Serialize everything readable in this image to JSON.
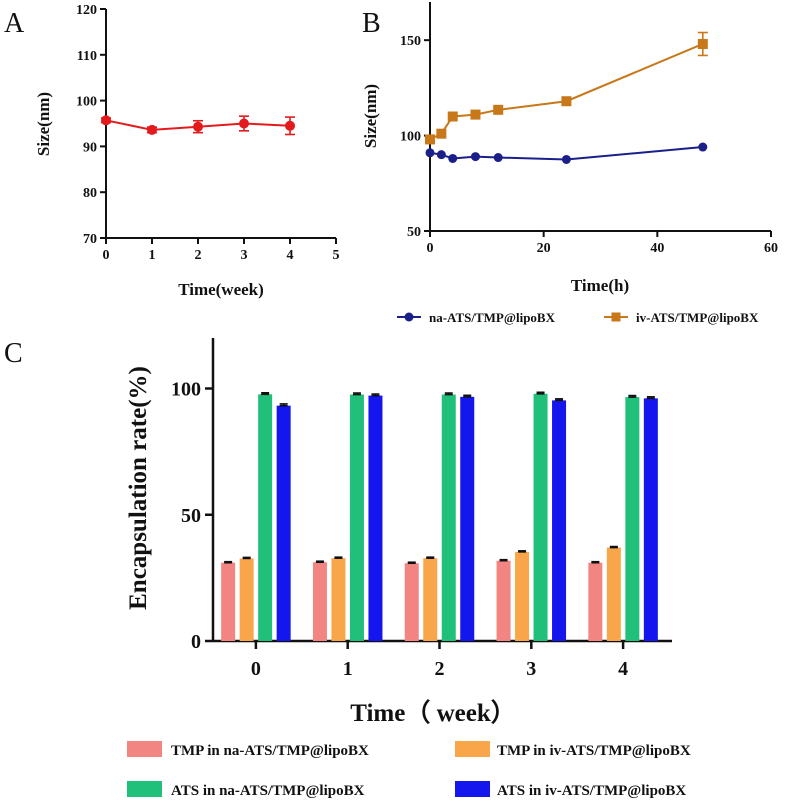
{
  "chart_data": [
    {
      "panel": "A",
      "type": "line",
      "xlabel": "Time(week)",
      "ylabel": "Size(nm)",
      "xlim": [
        0,
        5
      ],
      "ylim": [
        70,
        120
      ],
      "xticks": [
        "0",
        "1",
        "2",
        "3",
        "4",
        "5"
      ],
      "yticks": [
        "70",
        "80",
        "90",
        "100",
        "110",
        "120"
      ],
      "color": "#e31a1c",
      "x": [
        0,
        1,
        2,
        3,
        4
      ],
      "values": [
        95.7,
        93.6,
        94.3,
        95.0,
        94.5
      ],
      "errors": [
        0.5,
        0.6,
        1.3,
        1.6,
        1.9
      ]
    },
    {
      "panel": "B",
      "type": "line",
      "xlabel": "Time(h)",
      "ylabel": "Size(nm)",
      "xlim": [
        0,
        60
      ],
      "ylim": [
        50,
        170
      ],
      "xticks": [
        "0",
        "20",
        "40",
        "60"
      ],
      "yticks": [
        "50",
        "100",
        "150"
      ],
      "legend_position": "bottom",
      "series": [
        {
          "name": "na-ATS/TMP@lipoBX",
          "color": "#1b1f8a",
          "marker": "circle",
          "x": [
            0,
            2,
            4,
            8,
            12,
            24,
            48
          ],
          "values": [
            91,
            90,
            88,
            89,
            88.5,
            87.5,
            94
          ],
          "errors": [
            0,
            0,
            0,
            0,
            0,
            0,
            0
          ]
        },
        {
          "name": "iv-ATS/TMP@lipoBX",
          "color": "#c87719",
          "marker": "square",
          "x": [
            0,
            2,
            4,
            8,
            12,
            24,
            48
          ],
          "values": [
            98,
            101,
            110,
            111,
            113.5,
            118,
            148
          ],
          "errors": [
            0,
            0,
            0,
            0,
            0,
            0,
            6
          ]
        }
      ]
    },
    {
      "panel": "C",
      "type": "bar",
      "xlabel": "Time（ week）",
      "ylabel": "Encapsulation rate(%)",
      "ylim": [
        0,
        120
      ],
      "yticks": [
        "0",
        "50",
        "100"
      ],
      "categories": [
        "0",
        "1",
        "2",
        "3",
        "4"
      ],
      "legend_position": "bottom",
      "series": [
        {
          "name": "TMP in na-ATS/TMP@lipoBX",
          "color": "#f28482",
          "values": [
            31,
            31.2,
            30.8,
            31.8,
            31
          ],
          "errors": [
            0.4,
            0.4,
            0.4,
            0.4,
            0.4
          ]
        },
        {
          "name": "TMP in iv-ATS/TMP@lipoBX",
          "color": "#f9a54a",
          "values": [
            32.7,
            32.8,
            32.8,
            35.3,
            37
          ],
          "errors": [
            0.4,
            0.4,
            0.4,
            0.4,
            0.4
          ]
        },
        {
          "name": "ATS in na-ATS/TMP@lipoBX",
          "color": "#20c07a",
          "values": [
            97.7,
            97.6,
            97.6,
            97.9,
            96.6
          ],
          "errors": [
            0.6,
            0.6,
            0.6,
            0.6,
            0.6
          ]
        },
        {
          "name": "ATS in iv-ATS/TMP@lipoBX",
          "color": "#1515ee",
          "values": [
            93.2,
            97.2,
            96.7,
            95.3,
            96.1
          ],
          "errors": [
            0.7,
            0.6,
            0.6,
            0.6,
            0.6
          ]
        }
      ]
    }
  ],
  "panel_labels": {
    "a": "A",
    "b": "B",
    "c": "C"
  }
}
